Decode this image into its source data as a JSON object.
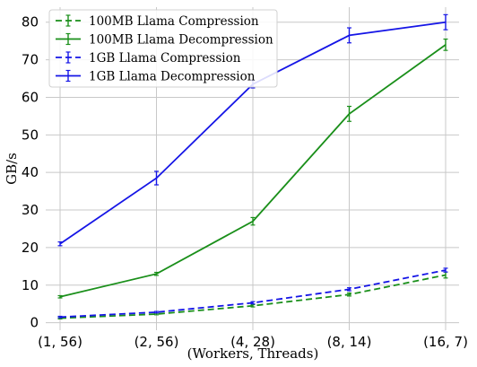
{
  "chart_data": {
    "type": "line",
    "title": "",
    "xlabel": "(Workers, Threads)",
    "ylabel": "GB/s",
    "categories": [
      "(1, 56)",
      "(2, 56)",
      "(4, 28)",
      "(8, 14)",
      "(16, 7)"
    ],
    "ylim": [
      -2,
      84
    ],
    "yticks": [
      0,
      10,
      20,
      30,
      40,
      50,
      60,
      70,
      80
    ],
    "grid": true,
    "legend_position": "top-left",
    "series": [
      {
        "name": "100MB Llama Compression",
        "color": "#1a8f1a",
        "dashed": true,
        "values": [
          1.2,
          2.3,
          4.5,
          7.5,
          12.7
        ],
        "errors": [
          0.2,
          0.2,
          0.3,
          0.4,
          0.8
        ]
      },
      {
        "name": "100MB Llama Decompression",
        "color": "#1a8f1a",
        "dashed": false,
        "values": [
          6.9,
          13.0,
          27.0,
          55.6,
          74.0
        ],
        "errors": [
          0.3,
          0.4,
          1.0,
          2.0,
          1.5
        ]
      },
      {
        "name": "1GB Llama Compression",
        "color": "#1515e6",
        "dashed": true,
        "values": [
          1.5,
          2.8,
          5.3,
          8.9,
          14.0
        ],
        "errors": [
          0.2,
          0.2,
          0.3,
          0.4,
          0.5
        ]
      },
      {
        "name": "1GB Llama Decompression",
        "color": "#1515e6",
        "dashed": false,
        "values": [
          21.0,
          38.5,
          63.5,
          76.5,
          80.0
        ],
        "errors": [
          0.5,
          1.8,
          1.0,
          2.0,
          2.0
        ]
      }
    ]
  }
}
